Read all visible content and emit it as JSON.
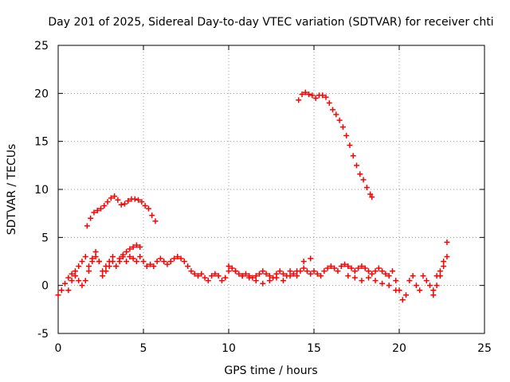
{
  "chart_data": {
    "type": "scatter",
    "title": "Day 201 of 2025, Sidereal Day-to-day VTEC variation (SDTVAR) for receiver chti",
    "xlabel": "GPS time / hours",
    "ylabel": "SDTVAR / TECUs",
    "xlim": [
      0,
      25
    ],
    "ylim": [
      -5,
      25
    ],
    "xticks": [
      0,
      5,
      10,
      15,
      20,
      25
    ],
    "yticks": [
      -5,
      0,
      5,
      10,
      15,
      20,
      25
    ],
    "grid": true,
    "marker": "+",
    "series": [
      {
        "name": "main",
        "color": "#ff0000",
        "x": [
          0.0,
          0.2,
          0.4,
          0.6,
          0.8,
          1.0,
          1.2,
          1.4,
          1.6,
          1.8,
          2.0,
          2.2,
          2.4,
          2.6,
          2.8,
          3.0,
          3.2,
          3.4,
          3.6,
          3.8,
          4.0,
          4.2,
          4.4,
          4.6,
          4.8,
          5.0,
          5.2,
          5.4,
          5.6,
          5.8,
          6.0,
          6.2,
          6.4,
          6.6,
          6.8,
          7.0,
          7.2,
          7.4,
          7.6,
          7.8,
          8.0,
          8.2,
          8.4,
          8.6,
          8.8,
          9.0,
          9.2,
          9.4,
          9.6,
          9.8,
          10.0,
          10.2,
          10.4,
          10.6,
          10.8,
          11.0,
          11.2,
          11.4,
          11.6,
          11.8,
          12.0,
          12.2,
          12.4,
          12.6,
          12.8,
          13.0,
          13.2,
          13.4,
          13.6,
          13.8,
          14.0,
          14.2,
          14.4,
          14.6,
          14.8,
          15.0,
          15.2,
          15.4,
          15.6,
          15.8,
          16.0,
          16.2,
          16.4,
          16.6,
          16.8,
          17.0,
          17.2,
          17.4,
          17.6,
          17.8,
          18.0,
          18.2,
          18.4,
          18.6,
          18.8,
          19.0,
          19.2,
          19.4,
          19.6,
          19.8,
          20.0,
          20.2,
          20.4,
          20.6,
          20.8,
          21.0,
          21.2,
          21.4,
          21.6,
          21.8,
          22.0,
          22.2,
          22.4,
          22.6,
          22.8
        ],
        "y": [
          -1.0,
          -0.5,
          0.2,
          0.8,
          1.2,
          1.5,
          2.0,
          2.5,
          3.0,
          2.0,
          2.8,
          3.5,
          2.5,
          1.5,
          2.0,
          2.5,
          3.0,
          2.0,
          2.5,
          3.0,
          2.5,
          3.0,
          2.8,
          2.5,
          3.0,
          2.5,
          2.0,
          2.2,
          2.0,
          2.5,
          2.8,
          2.5,
          2.2,
          2.5,
          2.8,
          3.0,
          2.8,
          2.5,
          2.0,
          1.5,
          1.2,
          1.0,
          1.2,
          0.8,
          0.5,
          1.0,
          1.2,
          1.0,
          0.5,
          0.8,
          1.5,
          1.8,
          1.5,
          1.2,
          1.0,
          1.2,
          1.0,
          0.8,
          1.0,
          1.2,
          1.5,
          1.2,
          1.0,
          0.8,
          1.2,
          1.5,
          1.2,
          1.0,
          1.5,
          1.2,
          1.0,
          1.5,
          1.8,
          1.5,
          1.2,
          1.5,
          1.2,
          1.0,
          1.5,
          1.8,
          2.0,
          1.8,
          1.5,
          2.0,
          2.2,
          2.0,
          1.8,
          1.5,
          1.8,
          2.0,
          1.8,
          1.5,
          1.2,
          1.5,
          1.8,
          1.5,
          1.2,
          1.0,
          1.5,
          0.5,
          -0.5,
          -1.5,
          -1.0,
          0.5,
          1.0,
          0.0,
          -0.5,
          1.0,
          0.5,
          0.0,
          -0.5,
          1.0,
          1.5,
          2.5,
          4.5
        ]
      },
      {
        "name": "secondary",
        "color": "#ff0000",
        "x": [
          0.6,
          0.8,
          1.0,
          1.2,
          1.4,
          1.6,
          1.8,
          2.0,
          2.2,
          2.4,
          2.6,
          2.8,
          3.0,
          3.2,
          3.4,
          3.6,
          3.8,
          4.0,
          4.2,
          4.4,
          4.6,
          4.8,
          10.0,
          10.4,
          10.8,
          11.2,
          11.6,
          12.0,
          12.4,
          12.8,
          13.2,
          13.6,
          14.0,
          14.4,
          14.8,
          17.0,
          17.4,
          17.8,
          18.2,
          18.6,
          19.0,
          19.4,
          19.8,
          22.0,
          22.2,
          22.4,
          22.6,
          22.8
        ],
        "y": [
          -0.5,
          0.5,
          1.0,
          0.5,
          0.0,
          0.5,
          1.5,
          2.5,
          3.0,
          2.5,
          1.0,
          1.5,
          2.0,
          2.5,
          2.0,
          2.8,
          3.2,
          3.5,
          3.8,
          4.0,
          4.2,
          4.0,
          2.0,
          1.5,
          1.0,
          0.8,
          0.5,
          0.2,
          0.5,
          0.8,
          0.5,
          1.0,
          1.5,
          2.5,
          2.8,
          1.0,
          0.8,
          0.5,
          0.8,
          0.5,
          0.2,
          0.0,
          -0.5,
          -1.0,
          0.0,
          1.0,
          2.0,
          3.0
        ]
      },
      {
        "name": "segment-2-4",
        "color": "#ff0000",
        "x": [
          1.7,
          1.9,
          2.1,
          2.3,
          2.5,
          2.7,
          2.9,
          3.1,
          3.3,
          3.5,
          3.7,
          3.9,
          4.1,
          4.3,
          4.5,
          4.7,
          4.9,
          5.1,
          5.3,
          5.5,
          5.7
        ],
        "y": [
          6.2,
          7.0,
          7.6,
          7.8,
          8.0,
          8.3,
          8.7,
          9.1,
          9.3,
          8.9,
          8.4,
          8.5,
          8.8,
          9.0,
          9.0,
          8.9,
          8.7,
          8.3,
          8.0,
          7.3,
          6.7
        ]
      },
      {
        "name": "segment-14-18",
        "color": "#ff0000",
        "x": [
          14.1,
          14.3,
          14.5,
          14.7,
          14.9,
          15.1,
          15.3,
          15.5,
          15.7,
          15.9,
          16.1,
          16.3,
          16.5,
          16.7,
          16.9,
          17.1,
          17.3,
          17.5,
          17.7,
          17.9,
          18.1,
          18.3,
          18.4
        ],
        "y": [
          19.3,
          19.9,
          20.1,
          19.9,
          19.8,
          19.5,
          19.8,
          19.8,
          19.6,
          19.0,
          18.3,
          17.8,
          17.2,
          16.5,
          15.6,
          14.6,
          13.5,
          12.5,
          11.6,
          11.0,
          10.2,
          9.5,
          9.2
        ]
      }
    ]
  }
}
